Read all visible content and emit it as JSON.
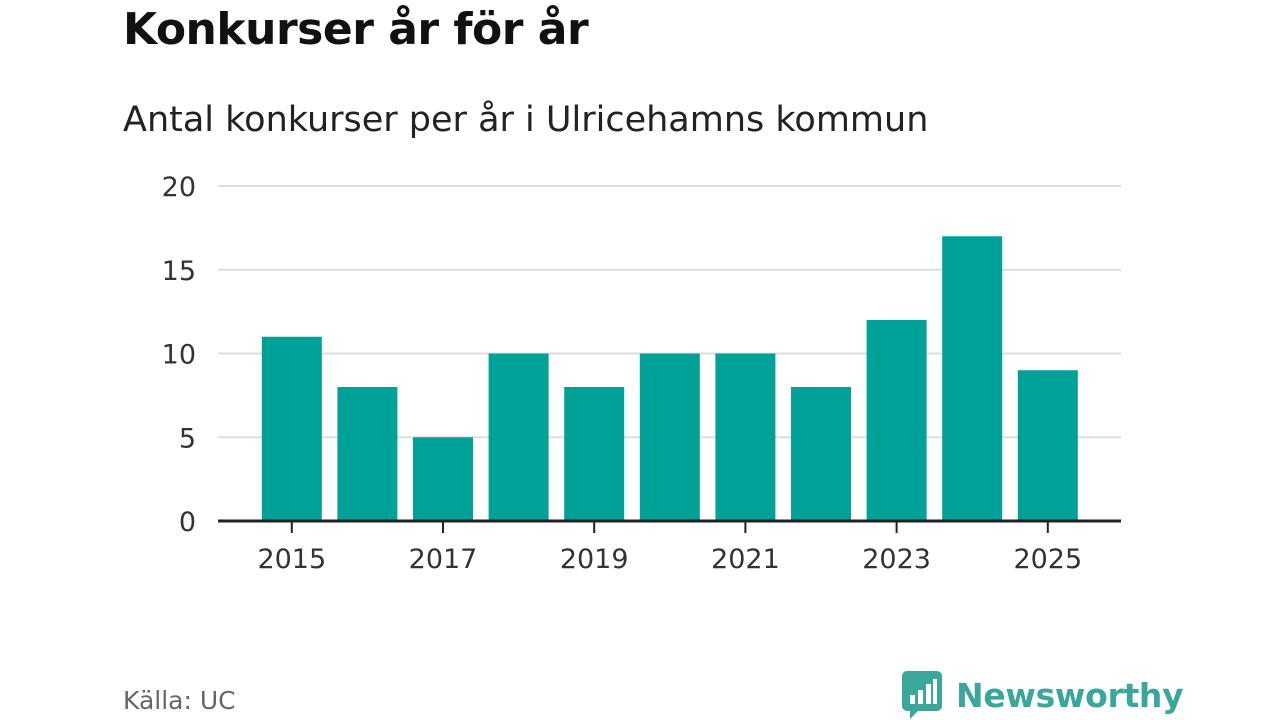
{
  "header": {
    "title": "Konkurser år för år",
    "subtitle": "Antal konkurser per år i Ulricehamns kommun"
  },
  "footer": {
    "source": "Källa: UC",
    "brand": "Newsworthy",
    "brand_icon": "bar-chart-speech-bubble-icon"
  },
  "colors": {
    "bar": "#00a298",
    "grid": "#dddddd",
    "axis": "#222222",
    "brand": "#3aa79a"
  },
  "chart_data": {
    "type": "bar",
    "title": "Antal konkurser per år i Ulricehamns kommun",
    "xlabel": "",
    "ylabel": "",
    "categories": [
      "2015",
      "2016",
      "2017",
      "2018",
      "2019",
      "2020",
      "2021",
      "2022",
      "2023",
      "2024",
      "2025"
    ],
    "values": [
      11,
      8,
      5,
      10,
      8,
      10,
      10,
      8,
      12,
      17,
      9
    ],
    "ylim": [
      0,
      20
    ],
    "yticks": [
      0,
      5,
      10,
      15,
      20
    ],
    "xtick_labels": [
      "2015",
      "2017",
      "2019",
      "2021",
      "2023",
      "2025"
    ],
    "grid": true,
    "legend": "none"
  }
}
